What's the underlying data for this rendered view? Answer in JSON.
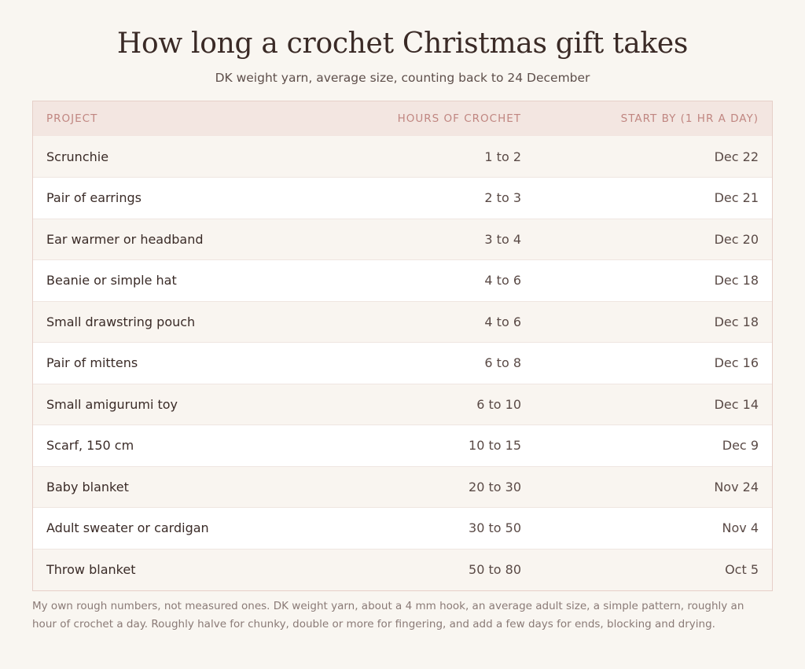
{
  "header": {
    "title": "How long a crochet Christmas gift takes",
    "subtitle": "DK weight yarn, average size, counting back to 24 December"
  },
  "table": {
    "columns": [
      "PROJECT",
      "HOURS OF CROCHET",
      "START BY (1 HR A DAY)"
    ],
    "rows": [
      {
        "project": "Scrunchie",
        "hours": "1 to 2",
        "start": "Dec 22"
      },
      {
        "project": "Pair of earrings",
        "hours": "2 to 3",
        "start": "Dec 21"
      },
      {
        "project": "Ear warmer or headband",
        "hours": "3 to 4",
        "start": "Dec 20"
      },
      {
        "project": "Beanie or simple hat",
        "hours": "4 to 6",
        "start": "Dec 18"
      },
      {
        "project": "Small drawstring pouch",
        "hours": "4 to 6",
        "start": "Dec 18"
      },
      {
        "project": "Pair of mittens",
        "hours": "6 to 8",
        "start": "Dec 16"
      },
      {
        "project": "Small amigurumi toy",
        "hours": "6 to 10",
        "start": "Dec 14"
      },
      {
        "project": "Scarf, 150 cm",
        "hours": "10 to 15",
        "start": "Dec 9"
      },
      {
        "project": "Baby blanket",
        "hours": "20 to 30",
        "start": "Nov 24"
      },
      {
        "project": "Adult sweater or cardigan",
        "hours": "30 to 50",
        "start": "Nov 4"
      },
      {
        "project": "Throw blanket",
        "hours": "50 to 80",
        "start": "Oct 5"
      }
    ]
  },
  "footnote": "My own rough numbers, not measured ones. DK weight yarn, about a 4 mm hook, an average adult size, a simple pattern, roughly an hour of crochet a day. Roughly halve for chunky, double or more for fingering, and add a few days for ends, blocking and drying."
}
